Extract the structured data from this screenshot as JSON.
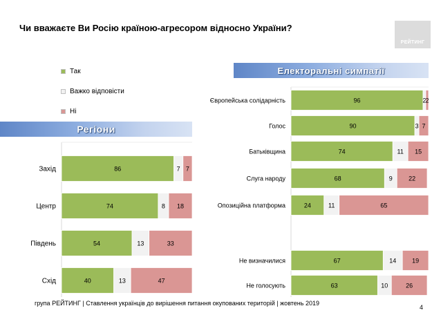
{
  "title": "Чи вважаєте Ви Росію країною-агресором відносно України?",
  "logo_text": "РЕЙТИНГ",
  "legend": [
    {
      "label": "Так",
      "color": "#9bbb59"
    },
    {
      "label": "Важко відповісти",
      "color": "#f2f2f2"
    },
    {
      "label": "Ні",
      "color": "#da9694"
    }
  ],
  "footer": "група РЕЙТИНГ | Ставлення українців до вирішення питання окупованих територій | жовтень 2019",
  "page_number": "4",
  "chart_data": [
    {
      "type": "bar",
      "orientation": "horizontal",
      "stacked": true,
      "title": "Регіони",
      "categories": [
        "Захід",
        "Центр",
        "Південь",
        "Схід"
      ],
      "series": [
        {
          "name": "Так",
          "values": [
            86,
            74,
            54,
            40
          ]
        },
        {
          "name": "Важко відповісти",
          "values": [
            7,
            8,
            13,
            13
          ]
        },
        {
          "name": "Ні",
          "values": [
            7,
            18,
            33,
            47
          ]
        }
      ]
    },
    {
      "type": "bar",
      "orientation": "horizontal",
      "stacked": true,
      "title": "Електоральні симпатії",
      "categories": [
        "Європейська солідарність",
        "Голос",
        "Батьківщина",
        "Слуга народу",
        "Опозиційна платформа",
        "Не визначилися",
        "Не голосують"
      ],
      "series": [
        {
          "name": "Так",
          "values": [
            96,
            90,
            74,
            68,
            24,
            67,
            63
          ]
        },
        {
          "name": "Важко відповісти",
          "values": [
            2,
            3,
            11,
            9,
            11,
            14,
            10
          ]
        },
        {
          "name": "Ні",
          "values": [
            2,
            7,
            15,
            22,
            65,
            19,
            26
          ]
        }
      ]
    }
  ]
}
